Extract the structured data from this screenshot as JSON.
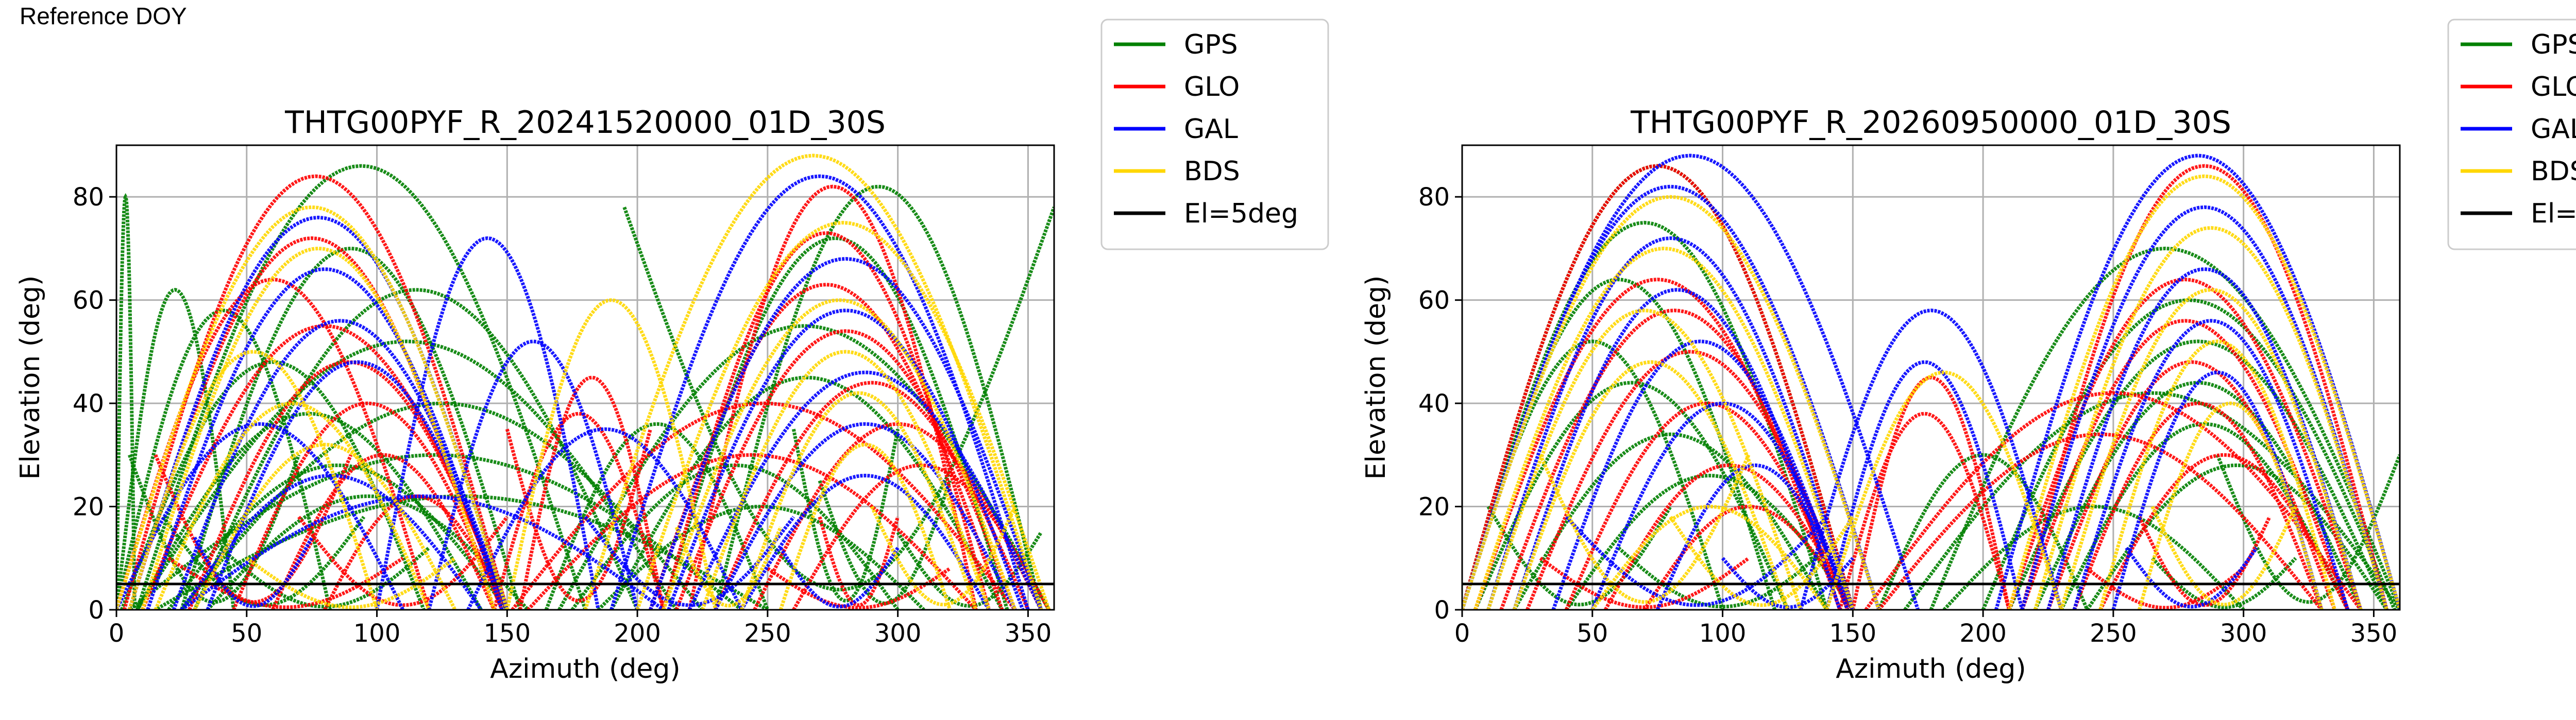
{
  "page": {
    "reference_label": "Reference DOY"
  },
  "chart_data": [
    {
      "type": "line",
      "title": "THTG00PYF_R_20241520000_01D_30S",
      "xlabel": "Azimuth (deg)",
      "ylabel": "Elevation (deg)",
      "xlim": [
        0,
        360
      ],
      "ylim": [
        0,
        90
      ],
      "xticks": [
        0,
        50,
        100,
        150,
        200,
        250,
        300,
        350
      ],
      "yticks": [
        0,
        20,
        40,
        60,
        80
      ],
      "grid": true,
      "legend_position": "outside-top-right",
      "elevation_mask": 5,
      "series": [
        {
          "name": "GPS",
          "color": "#008000",
          "arcs": [
            [
              0,
              80,
              7,
              1
            ],
            [
              0,
              62,
              45,
              1
            ],
            [
              0,
              58,
              82,
              1
            ],
            [
              2,
              48,
              118,
              1
            ],
            [
              8,
              38,
              140,
              1
            ],
            [
              20,
              28,
              150,
              1
            ],
            [
              35,
              22,
              158,
              1
            ],
            [
              180,
              86,
              8,
              1
            ],
            [
              155,
              70,
              25,
              1
            ],
            [
              200,
              62,
              30,
              1
            ],
            [
              215,
              52,
              8,
              1
            ],
            [
              225,
              40,
              25,
              1
            ],
            [
              240,
              30,
              5,
              1
            ],
            [
              250,
              22,
              15,
              1
            ],
            [
              170,
              55,
              358,
              1
            ],
            [
              190,
              45,
              340,
              1
            ],
            [
              210,
              72,
              342,
              1
            ],
            [
              230,
              82,
              355,
              1
            ],
            [
              165,
              36,
              250,
              1
            ],
            [
              175,
              28,
              300,
              1
            ],
            [
              185,
              20,
              310,
              1
            ],
            [
              5,
              30,
              70,
              0
            ],
            [
              18,
              18,
              95,
              0
            ],
            [
              260,
              35,
              300,
              0
            ],
            [
              270,
              25,
              320,
              0
            ],
            [
              40,
              12,
              120,
              0
            ],
            [
              300,
              15,
              355,
              0
            ],
            [
              195,
              78,
              360,
              0
            ]
          ]
        },
        {
          "name": "GLO",
          "color": "#ff0000",
          "arcs": [
            [
              10,
              55,
              150,
              1
            ],
            [
              28,
              48,
              150,
              1
            ],
            [
              45,
              40,
              148,
              1
            ],
            [
              60,
              30,
              145,
              1
            ],
            [
              80,
              22,
              150,
              1
            ],
            [
              5,
              72,
              145,
              1
            ],
            [
              0,
              64,
              120,
              1
            ],
            [
              3,
              84,
              150,
              1
            ],
            [
              220,
              82,
              330,
              1
            ],
            [
              210,
              73,
              335,
              1
            ],
            [
              205,
              63,
              340,
              1
            ],
            [
              215,
              54,
              345,
              1
            ],
            [
              230,
              44,
              350,
              1
            ],
            [
              245,
              36,
              355,
              1
            ],
            [
              260,
              28,
              358,
              1
            ],
            [
              152,
              40,
              345,
              1
            ],
            [
              158,
              30,
              330,
              1
            ],
            [
              145,
              38,
              210,
              1
            ],
            [
              155,
              45,
              210,
              1
            ],
            [
              150,
              35,
              205,
              0
            ],
            [
              20,
              10,
              110,
              0
            ],
            [
              250,
              8,
              320,
              0
            ],
            [
              70,
              18,
              150,
              0
            ],
            [
              15,
              30,
              90,
              0
            ],
            [
              270,
              18,
              300,
              0
            ]
          ]
        },
        {
          "name": "GAL",
          "color": "#0000ff",
          "arcs": [
            [
              5,
              76,
              150,
              1
            ],
            [
              12,
              66,
              148,
              1
            ],
            [
              22,
              56,
              150,
              1
            ],
            [
              35,
              48,
              150,
              1
            ],
            [
              0,
              36,
              110,
              1
            ],
            [
              25,
              26,
              140,
              1
            ],
            [
              190,
              84,
              350,
              1
            ],
            [
              205,
              68,
              355,
              1
            ],
            [
              212,
              58,
              348,
              1
            ],
            [
              220,
              46,
              355,
              1
            ],
            [
              230,
              36,
              345,
              1
            ],
            [
              240,
              26,
              335,
              1
            ],
            [
              100,
              72,
              185,
              1
            ],
            [
              120,
              52,
              200,
              1
            ],
            [
              25,
              22,
              210,
              1
            ],
            [
              135,
              35,
              240,
              1
            ],
            [
              30,
              14,
              75,
              0
            ],
            [
              255,
              12,
              300,
              0
            ],
            [
              180,
              18,
              260,
              0
            ]
          ]
        },
        {
          "name": "BDS",
          "color": "#ffd700",
          "arcs": [
            [
              0,
              78,
              150,
              1
            ],
            [
              10,
              70,
              145,
              1
            ],
            [
              5,
              50,
              100,
              1
            ],
            [
              15,
              40,
              120,
              1
            ],
            [
              30,
              32,
              130,
              1
            ],
            [
              180,
              88,
              355,
              1
            ],
            [
              200,
              75,
              358,
              1
            ],
            [
              210,
              60,
              345,
              1
            ],
            [
              225,
              50,
              335,
              1
            ],
            [
              240,
              42,
              330,
              1
            ],
            [
              255,
              32,
              320,
              1
            ],
            [
              150,
              60,
              230,
              1
            ],
            [
              50,
              10,
              130,
              0
            ],
            [
              215,
              16,
              255,
              0
            ],
            [
              290,
              20,
              345,
              0
            ]
          ]
        }
      ]
    },
    {
      "type": "line",
      "title": "THTG00PYF_R_20260950000_01D_30S",
      "xlabel": "Azimuth (deg)",
      "ylabel": "Elevation (deg)",
      "xlim": [
        0,
        360
      ],
      "ylim": [
        0,
        90
      ],
      "xticks": [
        0,
        50,
        100,
        150,
        200,
        250,
        300,
        350
      ],
      "yticks": [
        0,
        20,
        40,
        60,
        80
      ],
      "grid": true,
      "legend_position": "outside-top-right",
      "elevation_mask": 5,
      "series": [
        {
          "name": "GPS",
          "color": "#008000",
          "arcs": [
            [
              0,
              86,
              150,
              1
            ],
            [
              0,
              75,
              140,
              1
            ],
            [
              0,
              64,
              120,
              1
            ],
            [
              0,
              52,
              100,
              1
            ],
            [
              5,
              44,
              125,
              1
            ],
            [
              20,
              34,
              140,
              1
            ],
            [
              40,
              26,
              150,
              1
            ],
            [
              180,
              70,
              360,
              1
            ],
            [
              200,
              60,
              358,
              1
            ],
            [
              210,
              52,
              355,
              1
            ],
            [
              220,
              44,
              345,
              1
            ],
            [
              230,
              36,
              340,
              1
            ],
            [
              240,
              28,
              355,
              1
            ],
            [
              170,
              42,
              360,
              1
            ],
            [
              160,
              30,
              240,
              1
            ],
            [
              185,
              20,
              300,
              1
            ],
            [
              10,
              20,
              80,
              0
            ],
            [
              265,
              10,
              320,
              0
            ],
            [
              60,
              12,
              140,
              0
            ],
            [
              290,
              30,
              360,
              0
            ]
          ]
        },
        {
          "name": "GLO",
          "color": "#ff0000",
          "arcs": [
            [
              0,
              86,
              150,
              1
            ],
            [
              5,
              64,
              145,
              1
            ],
            [
              15,
              58,
              148,
              1
            ],
            [
              25,
              50,
              150,
              1
            ],
            [
              40,
              40,
              148,
              1
            ],
            [
              55,
              28,
              150,
              1
            ],
            [
              70,
              20,
              150,
              1
            ],
            [
              215,
              86,
              355,
              1
            ],
            [
              210,
              64,
              345,
              1
            ],
            [
              215,
              56,
              340,
              1
            ],
            [
              225,
              48,
              335,
              1
            ],
            [
              235,
              40,
              330,
              1
            ],
            [
              245,
              30,
              340,
              1
            ],
            [
              155,
              42,
              345,
              1
            ],
            [
              160,
              34,
              330,
              1
            ],
            [
              145,
              38,
              210,
              1
            ],
            [
              150,
              45,
              210,
              1
            ],
            [
              30,
              10,
              110,
              0
            ],
            [
              240,
              8,
              300,
              0
            ],
            [
              260,
              18,
              310,
              0
            ]
          ]
        },
        {
          "name": "GAL",
          "color": "#0000ff",
          "arcs": [
            [
              0,
              88,
              175,
              1
            ],
            [
              0,
              82,
              160,
              1
            ],
            [
              10,
              72,
              150,
              1
            ],
            [
              20,
              62,
              145,
              1
            ],
            [
              35,
              52,
              148,
              1
            ],
            [
              50,
              40,
              150,
              1
            ],
            [
              75,
              28,
              150,
              1
            ],
            [
              205,
              88,
              360,
              1
            ],
            [
              215,
              78,
              355,
              1
            ],
            [
              225,
              66,
              345,
              1
            ],
            [
              235,
              56,
              340,
              1
            ],
            [
              250,
              46,
              330,
              1
            ],
            [
              130,
              58,
              230,
              1
            ],
            [
              140,
              48,
              215,
              1
            ],
            [
              40,
              18,
              140,
              0
            ],
            [
              255,
              12,
              305,
              0
            ],
            [
              100,
              10,
              150,
              0
            ]
          ]
        },
        {
          "name": "BDS",
          "color": "#ffd700",
          "arcs": [
            [
              0,
              80,
              160,
              1
            ],
            [
              5,
              70,
              150,
              1
            ],
            [
              10,
              58,
              130,
              1
            ],
            [
              20,
              48,
              125,
              1
            ],
            [
              50,
              20,
              140,
              1
            ],
            [
              210,
              84,
              360,
              1
            ],
            [
              220,
              74,
              355,
              1
            ],
            [
              230,
              62,
              345,
              1
            ],
            [
              245,
              52,
              335,
              1
            ],
            [
              260,
              40,
              330,
              1
            ],
            [
              140,
              46,
              230,
              1
            ],
            [
              30,
              30,
              110,
              0
            ],
            [
              265,
              20,
              320,
              0
            ],
            [
              80,
              18,
              150,
              0
            ]
          ]
        }
      ]
    }
  ],
  "legend": [
    {
      "label": "GPS",
      "color": "#008000"
    },
    {
      "label": "GLO",
      "color": "#ff0000"
    },
    {
      "label": "GAL",
      "color": "#0000ff"
    },
    {
      "label": "BDS",
      "color": "#ffd700"
    },
    {
      "label": "El=5deg",
      "color": "#000000"
    }
  ]
}
